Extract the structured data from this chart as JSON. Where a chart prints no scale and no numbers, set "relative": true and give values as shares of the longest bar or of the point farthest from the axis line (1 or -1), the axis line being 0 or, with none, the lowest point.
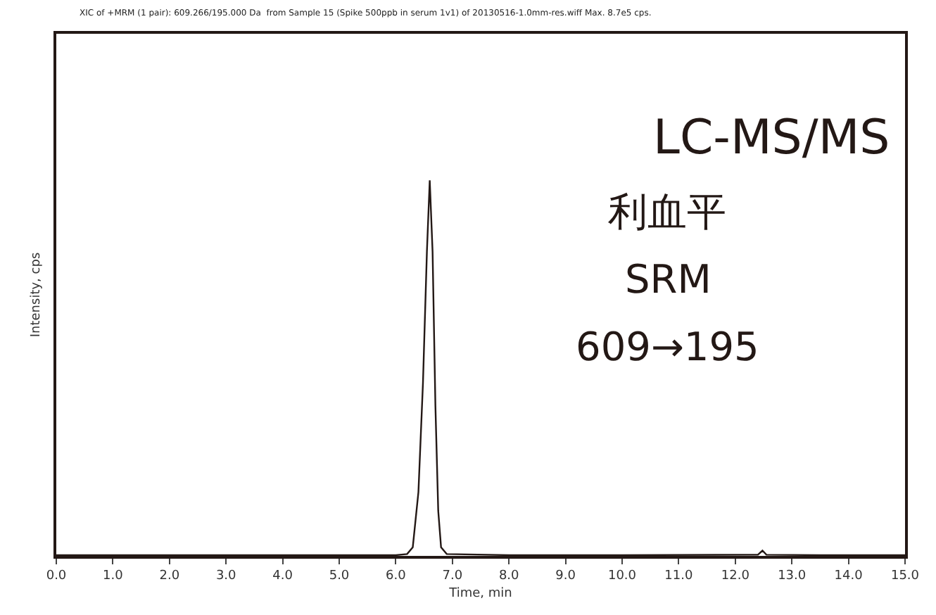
{
  "chart_data": {
    "type": "line",
    "title": "XIC of +MRM (1 pair): 609.266/195.000 Da  from Sample 15 (Spike 500ppb in serum 1v1) of 20130516-1.0mm-res.wiff Max. 8.7e5 cps.",
    "xlabel": "Time, min",
    "ylabel": "Intensity, cps",
    "relative": true,
    "series": [
      {
        "color": "#231815",
        "x": [
          0.0,
          2.0,
          4.0,
          6.0,
          6.2,
          6.3,
          6.4,
          6.48,
          6.55,
          6.6,
          6.65,
          6.7,
          6.75,
          6.8,
          6.9,
          8.0,
          10.0,
          12.4,
          12.48,
          12.55,
          13.5,
          15.0
        ],
        "values": [
          0.002,
          0.002,
          0.002,
          0.002,
          0.005,
          0.023,
          0.17,
          0.46,
          0.81,
          1,
          0.81,
          0.4,
          0.12,
          0.023,
          0.005,
          0.002,
          0.002,
          0.003,
          0.014,
          0.003,
          0.002,
          0.002
        ]
      }
    ],
    "xlim": [
      0,
      15
    ],
    "xticks": [
      {
        "value": 0,
        "label": "0.0"
      },
      {
        "value": 1,
        "label": "1.0"
      },
      {
        "value": 2,
        "label": "2.0"
      },
      {
        "value": 3,
        "label": "3.0"
      },
      {
        "value": 4,
        "label": "4.0"
      },
      {
        "value": 5,
        "label": "5.0"
      },
      {
        "value": 6,
        "label": "6.0"
      },
      {
        "value": 7,
        "label": "7.0"
      },
      {
        "value": 8,
        "label": "8.0"
      },
      {
        "value": 9,
        "label": "9.0"
      },
      {
        "value": 10,
        "label": "10.0"
      },
      {
        "value": 11,
        "label": "11.0"
      },
      {
        "value": 12,
        "label": "12.0"
      },
      {
        "value": 13,
        "label": "13.0"
      },
      {
        "value": 14,
        "label": "14.0"
      },
      {
        "value": 15,
        "label": "15.0"
      }
    ],
    "legend": false,
    "marker": "none",
    "line_style": "solid",
    "annotations": [
      "LC-MS/MS",
      "利血平",
      "SRM",
      "609→195"
    ]
  }
}
